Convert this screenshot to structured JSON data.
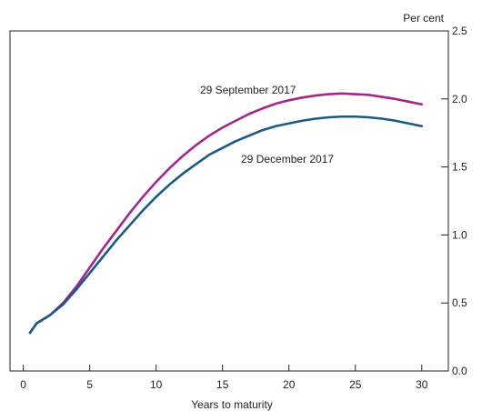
{
  "chart_data": {
    "type": "line",
    "xlabel": "Years to maturity",
    "ylabel": "Per cent",
    "xlim": [
      -1,
      32
    ],
    "ylim": [
      0,
      2.5
    ],
    "x_ticks": [
      0,
      5,
      10,
      15,
      20,
      25,
      30
    ],
    "x_tick_labels": [
      "0",
      "5",
      "10",
      "15",
      "20",
      "25",
      "30"
    ],
    "y_ticks": [
      0,
      0.5,
      1.0,
      1.5,
      2.0,
      2.5
    ],
    "y_tick_labels": [
      "0.0",
      "0.5",
      "1.0",
      "1.5",
      "2.0",
      "2.5"
    ],
    "grid": false,
    "series": [
      {
        "name": "29 September 2017",
        "color": "#a0288c",
        "x": [
          0.5,
          1,
          2,
          3,
          4,
          5,
          6,
          7,
          8,
          9,
          10,
          11,
          12,
          13,
          14,
          15,
          16,
          17,
          18,
          19,
          20,
          21,
          22,
          23,
          24,
          25,
          26,
          27,
          28,
          29,
          30
        ],
        "y": [
          0.28,
          0.35,
          0.41,
          0.5,
          0.62,
          0.76,
          0.9,
          1.03,
          1.16,
          1.28,
          1.39,
          1.49,
          1.58,
          1.66,
          1.73,
          1.79,
          1.84,
          1.89,
          1.93,
          1.965,
          1.99,
          2.01,
          2.025,
          2.035,
          2.04,
          2.035,
          2.03,
          2.015,
          2.0,
          1.98,
          1.96
        ]
      },
      {
        "name": "29 December 2017",
        "color": "#1b5a86",
        "x": [
          0.5,
          1,
          2,
          3,
          4,
          5,
          6,
          7,
          8,
          9,
          10,
          11,
          12,
          13,
          14,
          15,
          16,
          17,
          18,
          19,
          20,
          21,
          22,
          23,
          24,
          25,
          26,
          27,
          28,
          29,
          30
        ],
        "y": [
          0.28,
          0.35,
          0.41,
          0.49,
          0.6,
          0.72,
          0.84,
          0.96,
          1.07,
          1.18,
          1.28,
          1.37,
          1.45,
          1.52,
          1.59,
          1.64,
          1.69,
          1.73,
          1.77,
          1.8,
          1.82,
          1.84,
          1.855,
          1.865,
          1.87,
          1.87,
          1.865,
          1.855,
          1.84,
          1.82,
          1.8
        ]
      }
    ],
    "annotations": [
      {
        "text": "29 September 2017",
        "series": 0
      },
      {
        "text": "29 December 2017",
        "series": 1
      }
    ]
  }
}
